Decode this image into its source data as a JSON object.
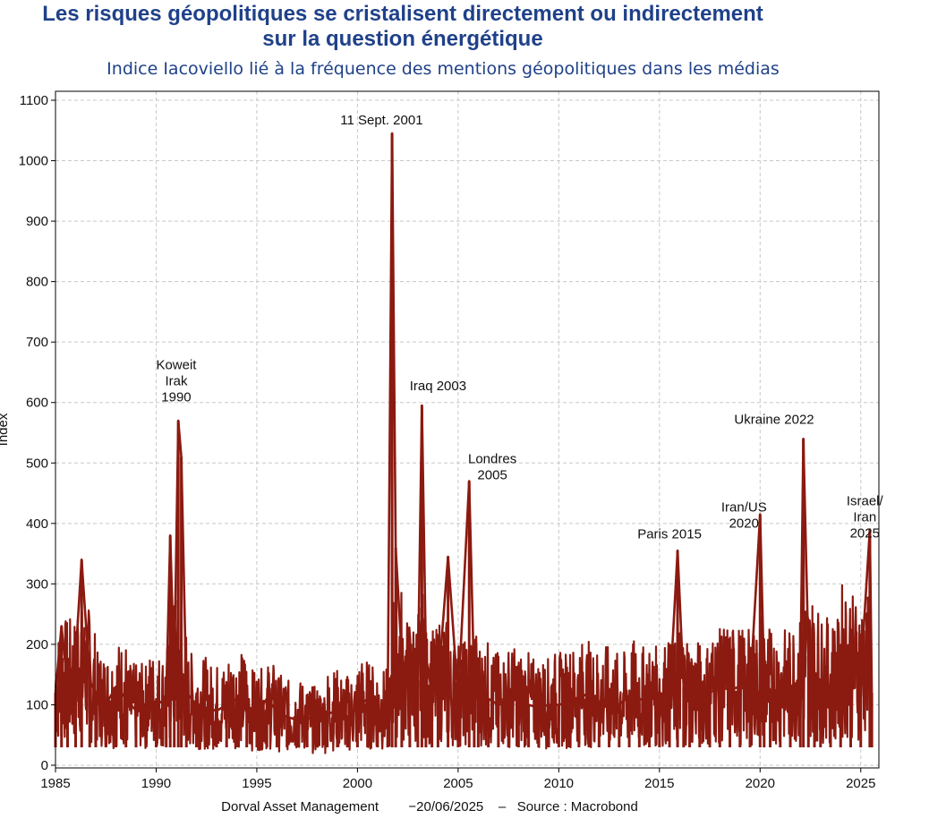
{
  "chart_data": {
    "type": "line",
    "title_line1": "Les risques géopolitiques se cristalisent directement ou indirectement",
    "title_line2": "sur la question énergétique",
    "subtitle": "Indice Iacoviello lié à la fréquence des mentions géopolitiques dans les médias",
    "xlabel": "",
    "ylabel": "Index",
    "xlim": [
      1985,
      2025.9
    ],
    "ylim": [
      0,
      1100
    ],
    "x_ticks": [
      "1985",
      "1990",
      "1995",
      "2000",
      "2005",
      "2010",
      "2015",
      "2020",
      "2025"
    ],
    "y_ticks": [
      "0",
      "100",
      "200",
      "300",
      "400",
      "500",
      "600",
      "700",
      "800",
      "900",
      "1000",
      "1100"
    ],
    "grid": true,
    "line_color": "#8b1a10",
    "series": [
      {
        "name": "",
        "x": [
          1985.0,
          1985.3,
          1985.6,
          1986.0,
          1986.3,
          1986.7,
          1987.0,
          1987.5,
          1988.0,
          1988.5,
          1989.0,
          1989.5,
          1990.0,
          1990.5,
          1990.7,
          1990.9,
          1991.1,
          1991.25,
          1991.5,
          1992.0,
          1992.5,
          1993.0,
          1993.5,
          1994.0,
          1994.5,
          1995.0,
          1995.5,
          1996.0,
          1996.5,
          1997.0,
          1997.5,
          1998.0,
          1998.5,
          1999.0,
          1999.5,
          2000.0,
          2000.5,
          2001.0,
          2001.5,
          2001.72,
          2001.9,
          2002.2,
          2002.6,
          2003.0,
          2003.2,
          2003.4,
          2003.7,
          2004.0,
          2004.5,
          2005.0,
          2005.55,
          2005.8,
          2006.0,
          2006.5,
          2007.0,
          2007.5,
          2008.0,
          2008.5,
          2009.0,
          2009.5,
          2010.0,
          2010.5,
          2011.0,
          2011.5,
          2012.0,
          2012.5,
          2013.0,
          2013.5,
          2014.0,
          2014.5,
          2015.0,
          2015.5,
          2015.9,
          2016.2,
          2016.5,
          2017.0,
          2017.5,
          2018.0,
          2018.5,
          2019.0,
          2019.5,
          2020.0,
          2020.2,
          2020.5,
          2021.0,
          2021.5,
          2022.0,
          2022.15,
          2022.4,
          2022.7,
          2023.0,
          2023.5,
          2024.0,
          2024.5,
          2025.0,
          2025.45,
          2025.55
        ],
        "values": [
          120,
          230,
          130,
          180,
          340,
          140,
          120,
          100,
          130,
          110,
          90,
          100,
          100,
          110,
          380,
          150,
          570,
          510,
          120,
          100,
          95,
          90,
          100,
          110,
          100,
          85,
          110,
          90,
          80,
          75,
          80,
          70,
          85,
          90,
          80,
          95,
          110,
          90,
          85,
          1045,
          360,
          180,
          130,
          140,
          595,
          180,
          120,
          130,
          345,
          110,
          470,
          130,
          120,
          110,
          100,
          105,
          110,
          100,
          95,
          100,
          100,
          105,
          110,
          120,
          105,
          110,
          100,
          115,
          110,
          105,
          120,
          110,
          355,
          130,
          120,
          110,
          120,
          130,
          125,
          130,
          120,
          415,
          140,
          125,
          120,
          130,
          140,
          540,
          180,
          150,
          140,
          130,
          160,
          180,
          150,
          390,
          120
        ]
      }
    ],
    "annotations": [
      {
        "lines": [
          "Koweit",
          "Irak",
          "1990"
        ],
        "x": 1991.0,
        "y": 655
      },
      {
        "lines": [
          "11 Sept. 2001"
        ],
        "x": 2001.2,
        "y": 1060
      },
      {
        "lines": [
          "Iraq 2003"
        ],
        "x": 2004.0,
        "y": 620
      },
      {
        "lines": [
          "Londres",
          "2005"
        ],
        "x": 2006.7,
        "y": 500
      },
      {
        "lines": [
          "Paris 2015"
        ],
        "x": 2015.5,
        "y": 375
      },
      {
        "lines": [
          "Iran/US",
          "2020"
        ],
        "x": 2019.2,
        "y": 420
      },
      {
        "lines": [
          "Ukraine 2022"
        ],
        "x": 2020.7,
        "y": 565
      },
      {
        "lines": [
          "Israel/",
          "Iran",
          "2025"
        ],
        "x": 2025.2,
        "y": 430
      }
    ]
  },
  "footer": {
    "source": "Dorval Asset Management        −20/06/2025    –   Source : Macrobond"
  }
}
